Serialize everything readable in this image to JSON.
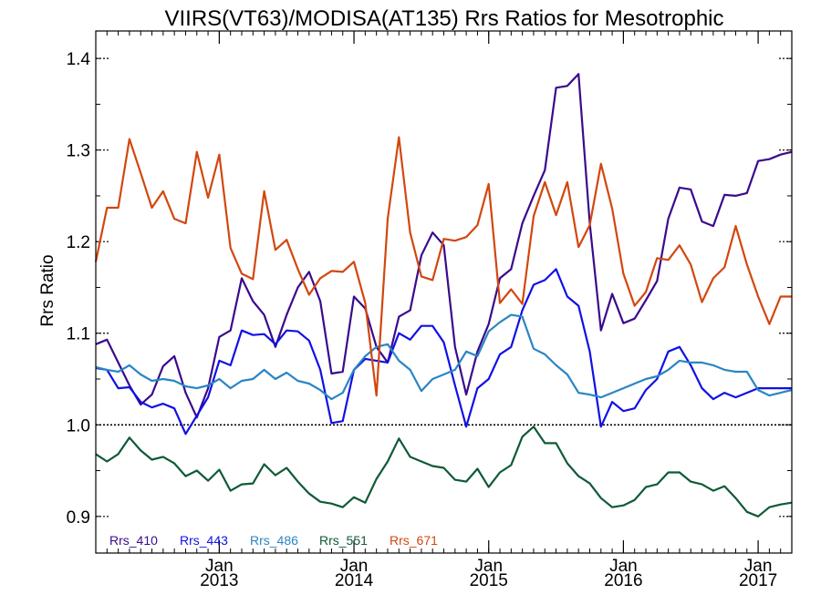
{
  "chart_data": {
    "type": "line",
    "title": "VIIRS(VT63)/MODISA(AT135)  Rrs Ratios for Mesotrophic",
    "ylabel": "Rrs Ratio",
    "xlabel": "",
    "ylim": [
      0.86,
      1.43
    ],
    "xlim": [
      "2012-02",
      "2017-04"
    ],
    "y_ticks": [
      0.9,
      1.0,
      1.1,
      1.2,
      1.3,
      1.4
    ],
    "y_tick_labels": [
      "0.9",
      "1.0",
      "1.1",
      "1.2",
      "1.3",
      "1.4"
    ],
    "x_ticks": [
      {
        "month": "Jan",
        "year": "2013",
        "date": "2013-01"
      },
      {
        "month": "Jan",
        "year": "2014",
        "date": "2014-01"
      },
      {
        "month": "Jan",
        "year": "2015",
        "date": "2015-01"
      },
      {
        "month": "Jan",
        "year": "2016",
        "date": "2016-01"
      },
      {
        "month": "Jan",
        "year": "2017",
        "date": "2017-01"
      }
    ],
    "reference_line": 1.0,
    "grid": false,
    "legend_position": "bottom-left",
    "x": [
      "2012-02",
      "2012-03",
      "2012-04",
      "2012-05",
      "2012-06",
      "2012-07",
      "2012-08",
      "2012-09",
      "2012-10",
      "2012-11",
      "2012-12",
      "2013-01",
      "2013-02",
      "2013-03",
      "2013-04",
      "2013-05",
      "2013-06",
      "2013-07",
      "2013-08",
      "2013-09",
      "2013-10",
      "2013-11",
      "2013-12",
      "2014-01",
      "2014-02",
      "2014-03",
      "2014-04",
      "2014-05",
      "2014-06",
      "2014-07",
      "2014-08",
      "2014-09",
      "2014-10",
      "2014-11",
      "2014-12",
      "2015-01",
      "2015-02",
      "2015-03",
      "2015-04",
      "2015-05",
      "2015-06",
      "2015-07",
      "2015-08",
      "2015-09",
      "2015-10",
      "2015-11",
      "2015-12",
      "2016-01",
      "2016-02",
      "2016-03",
      "2016-04",
      "2016-05",
      "2016-06",
      "2016-07",
      "2016-08",
      "2016-09",
      "2016-10",
      "2016-11",
      "2016-12",
      "2017-01",
      "2017-02",
      "2017-03",
      "2017-04"
    ],
    "series": [
      {
        "name": "Rrs_410",
        "color": "#3a0a8c",
        "values": [
          1.088,
          1.093,
          1.068,
          1.043,
          1.022,
          1.033,
          1.064,
          1.075,
          1.035,
          1.008,
          1.04,
          1.096,
          1.103,
          1.16,
          1.135,
          1.12,
          1.085,
          1.12,
          1.15,
          1.167,
          1.135,
          1.056,
          1.058,
          1.14,
          1.127,
          1.085,
          1.068,
          1.118,
          1.125,
          1.185,
          1.21,
          1.196,
          1.085,
          1.033,
          1.08,
          1.11,
          1.16,
          1.17,
          1.22,
          1.25,
          1.278,
          1.368,
          1.37,
          1.383,
          1.22,
          1.103,
          1.143,
          1.111,
          1.116,
          1.136,
          1.157,
          1.225,
          1.259,
          1.257,
          1.222,
          1.217,
          1.251,
          1.25,
          1.253,
          1.288,
          1.29,
          1.295,
          1.298
        ]
      },
      {
        "name": "Rrs_443",
        "color": "#1010e6",
        "values": [
          1.062,
          1.06,
          1.04,
          1.041,
          1.025,
          1.019,
          1.023,
          1.018,
          0.99,
          1.01,
          1.03,
          1.07,
          1.065,
          1.103,
          1.098,
          1.099,
          1.088,
          1.103,
          1.102,
          1.092,
          1.06,
          1.002,
          1.004,
          1.06,
          1.072,
          1.07,
          1.068,
          1.1,
          1.093,
          1.108,
          1.108,
          1.09,
          1.043,
          0.998,
          1.04,
          1.05,
          1.077,
          1.085,
          1.125,
          1.153,
          1.158,
          1.17,
          1.14,
          1.13,
          1.08,
          0.998,
          1.025,
          1.015,
          1.018,
          1.038,
          1.05,
          1.08,
          1.085,
          1.065,
          1.04,
          1.028,
          1.035,
          1.03,
          1.035,
          1.04,
          1.04,
          1.04,
          1.04
        ]
      },
      {
        "name": "Rrs_486",
        "color": "#2a85c4",
        "values": [
          1.063,
          1.06,
          1.058,
          1.065,
          1.055,
          1.048,
          1.05,
          1.048,
          1.042,
          1.04,
          1.043,
          1.05,
          1.04,
          1.048,
          1.05,
          1.06,
          1.05,
          1.057,
          1.048,
          1.045,
          1.038,
          1.028,
          1.035,
          1.06,
          1.075,
          1.085,
          1.088,
          1.07,
          1.06,
          1.037,
          1.05,
          1.055,
          1.06,
          1.08,
          1.075,
          1.102,
          1.112,
          1.12,
          1.118,
          1.083,
          1.077,
          1.065,
          1.055,
          1.035,
          1.033,
          1.03,
          1.035,
          1.04,
          1.045,
          1.05,
          1.053,
          1.06,
          1.07,
          1.068,
          1.068,
          1.065,
          1.06,
          1.058,
          1.058,
          1.038,
          1.032,
          1.035,
          1.038
        ]
      },
      {
        "name": "Rrs_551",
        "color": "#0e5a36",
        "values": [
          0.968,
          0.96,
          0.968,
          0.986,
          0.972,
          0.962,
          0.965,
          0.958,
          0.944,
          0.95,
          0.939,
          0.951,
          0.928,
          0.935,
          0.936,
          0.957,
          0.945,
          0.953,
          0.938,
          0.925,
          0.916,
          0.914,
          0.91,
          0.921,
          0.915,
          0.941,
          0.96,
          0.985,
          0.965,
          0.96,
          0.955,
          0.953,
          0.94,
          0.938,
          0.952,
          0.932,
          0.948,
          0.956,
          0.987,
          0.998,
          0.98,
          0.98,
          0.958,
          0.944,
          0.936,
          0.92,
          0.91,
          0.912,
          0.918,
          0.932,
          0.935,
          0.948,
          0.948,
          0.938,
          0.935,
          0.928,
          0.933,
          0.92,
          0.905,
          0.9,
          0.91,
          0.913,
          0.915
        ]
      },
      {
        "name": "Rrs_671",
        "color": "#d2470e",
        "values": [
          1.178,
          1.237,
          1.237,
          1.312,
          1.275,
          1.237,
          1.255,
          1.225,
          1.22,
          1.298,
          1.248,
          1.295,
          1.193,
          1.165,
          1.159,
          1.255,
          1.191,
          1.202,
          1.17,
          1.142,
          1.16,
          1.168,
          1.167,
          1.178,
          1.133,
          1.032,
          1.225,
          1.314,
          1.21,
          1.162,
          1.158,
          1.203,
          1.201,
          1.205,
          1.218,
          1.263,
          1.133,
          1.148,
          1.132,
          1.228,
          1.265,
          1.229,
          1.265,
          1.194,
          1.218,
          1.285,
          1.236,
          1.165,
          1.13,
          1.145,
          1.182,
          1.18,
          1.196,
          1.175,
          1.134,
          1.16,
          1.172,
          1.217,
          1.175,
          1.14,
          1.11,
          1.14,
          1.14
        ]
      }
    ]
  }
}
